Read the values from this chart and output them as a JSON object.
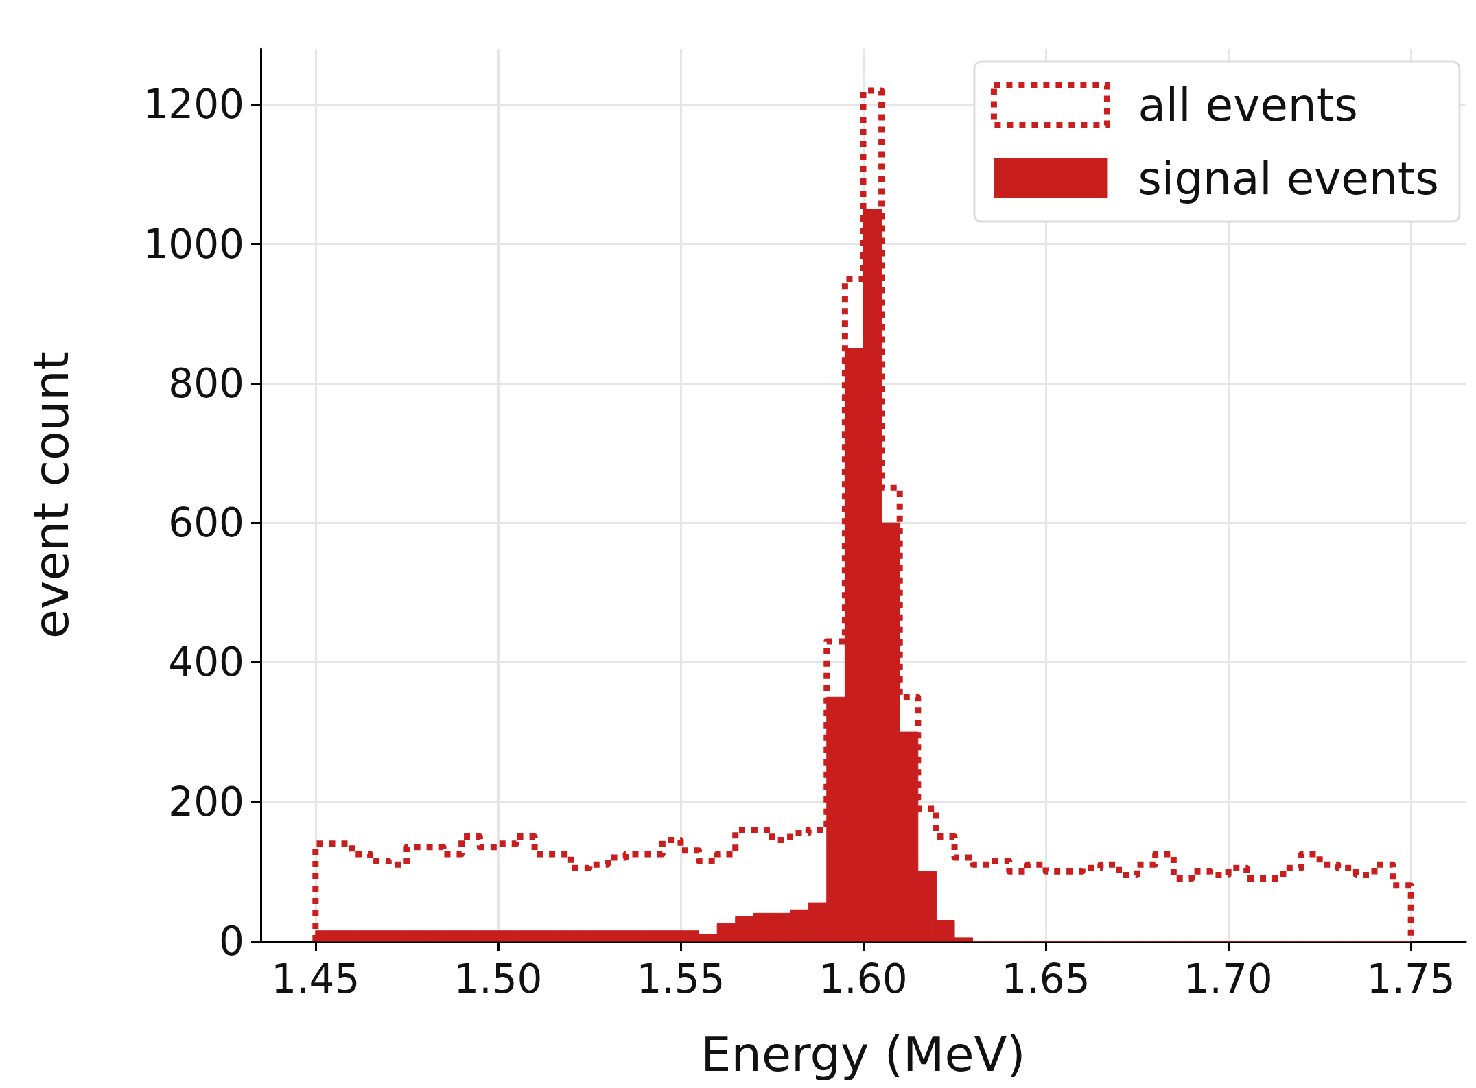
{
  "chart_data": {
    "type": "histogram",
    "xlabel": "Energy (MeV)",
    "ylabel": "event count",
    "bins": [
      1.45,
      1.455,
      1.46,
      1.465,
      1.47,
      1.475,
      1.48,
      1.485,
      1.49,
      1.495,
      1.5,
      1.505,
      1.51,
      1.515,
      1.52,
      1.525,
      1.53,
      1.535,
      1.54,
      1.545,
      1.55,
      1.555,
      1.56,
      1.565,
      1.57,
      1.575,
      1.58,
      1.585,
      1.59,
      1.595,
      1.6,
      1.605,
      1.61,
      1.615,
      1.62,
      1.625,
      1.63,
      1.635,
      1.64,
      1.645,
      1.65,
      1.655,
      1.66,
      1.665,
      1.67,
      1.675,
      1.68,
      1.685,
      1.69,
      1.695,
      1.7,
      1.705,
      1.71,
      1.715,
      1.72,
      1.725,
      1.73,
      1.735,
      1.74,
      1.745,
      1.75
    ],
    "series": [
      {
        "name": "all events",
        "color": "#c81e1e",
        "line_style": "dotted",
        "values": [
          140,
          140,
          125,
          115,
          110,
          135,
          135,
          125,
          150,
          135,
          140,
          150,
          125,
          125,
          105,
          110,
          120,
          125,
          125,
          145,
          130,
          115,
          125,
          160,
          160,
          145,
          155,
          160,
          430,
          950,
          1220,
          650,
          350,
          190,
          150,
          120,
          110,
          115,
          100,
          110,
          100,
          100,
          105,
          110,
          95,
          110,
          125,
          90,
          100,
          95,
          105,
          90,
          90,
          105,
          125,
          110,
          105,
          95,
          110,
          80
        ]
      },
      {
        "name": "signal events",
        "color": "#c81e1e",
        "values": [
          15,
          15,
          15,
          15,
          15,
          15,
          15,
          15,
          15,
          15,
          15,
          15,
          15,
          15,
          15,
          15,
          15,
          15,
          15,
          15,
          15,
          10,
          25,
          35,
          40,
          40,
          45,
          55,
          350,
          850,
          1050,
          600,
          300,
          100,
          30,
          5,
          0,
          0,
          0,
          0,
          0,
          0,
          0,
          0,
          0,
          0,
          0,
          0,
          0,
          0,
          0,
          0,
          0,
          0,
          0,
          0,
          0,
          0,
          0,
          0
        ]
      }
    ],
    "xlim": [
      1.435,
      1.765
    ],
    "ylim": [
      0,
      1280
    ],
    "xticks": [
      1.45,
      {
        "value": 1.5,
        "label": "1.50"
      },
      1.55,
      {
        "value": 1.6,
        "label": "1.60"
      },
      1.65,
      {
        "value": 1.7,
        "label": "1.70"
      },
      1.75
    ],
    "yticks": [
      0,
      200,
      400,
      600,
      800,
      1000,
      1200
    ],
    "grid": true,
    "legend": "top right"
  }
}
